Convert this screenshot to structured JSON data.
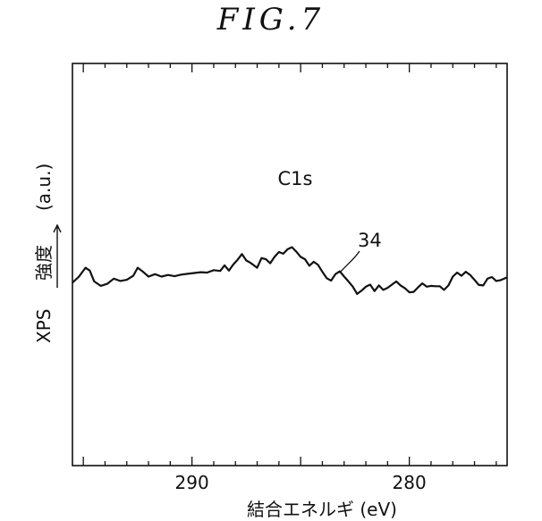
{
  "figure": {
    "title": "FIG.7"
  },
  "chart_data": {
    "type": "line",
    "title": "FIG.7",
    "xlabel": "結合エネルギ (eV)",
    "ylabel": "XPS 強度 (a.u.)",
    "ylabel_parts": {
      "main": "XPS",
      "jp": "強度",
      "unit": "(a.u.)"
    },
    "x_reversed": true,
    "xlim": [
      295.5,
      275.5
    ],
    "ylim": [
      0,
      1
    ],
    "x_ticks": [
      290,
      280
    ],
    "x_tick_labels": [
      "290",
      "280"
    ],
    "y_ticks_shown": false,
    "grid": false,
    "annotations": {
      "peak_label": "C1s",
      "curve_label": "34"
    },
    "series": [
      {
        "values_xy": [
          [
            295.5,
            0.455
          ],
          [
            295.2,
            0.47
          ],
          [
            294.9,
            0.492
          ],
          [
            294.7,
            0.485
          ],
          [
            294.5,
            0.458
          ],
          [
            294.2,
            0.447
          ],
          [
            293.9,
            0.452
          ],
          [
            293.6,
            0.465
          ],
          [
            293.3,
            0.459
          ],
          [
            293.0,
            0.462
          ],
          [
            292.7,
            0.472
          ],
          [
            292.5,
            0.492
          ],
          [
            292.3,
            0.484
          ],
          [
            292.0,
            0.47
          ],
          [
            291.7,
            0.476
          ],
          [
            291.4,
            0.47
          ],
          [
            291.1,
            0.474
          ],
          [
            290.8,
            0.471
          ],
          [
            290.5,
            0.475
          ],
          [
            290.2,
            0.477
          ],
          [
            289.9,
            0.479
          ],
          [
            289.6,
            0.481
          ],
          [
            289.3,
            0.48
          ],
          [
            289.0,
            0.486
          ],
          [
            288.7,
            0.484
          ],
          [
            288.5,
            0.498
          ],
          [
            288.3,
            0.485
          ],
          [
            288.1,
            0.5
          ],
          [
            287.9,
            0.512
          ],
          [
            287.7,
            0.526
          ],
          [
            287.5,
            0.51
          ],
          [
            287.3,
            0.504
          ],
          [
            287.0,
            0.492
          ],
          [
            286.8,
            0.516
          ],
          [
            286.6,
            0.513
          ],
          [
            286.4,
            0.503
          ],
          [
            286.2,
            0.519
          ],
          [
            286.0,
            0.531
          ],
          [
            285.8,
            0.527
          ],
          [
            285.6,
            0.538
          ],
          [
            285.4,
            0.543
          ],
          [
            285.2,
            0.532
          ],
          [
            285.0,
            0.519
          ],
          [
            284.8,
            0.513
          ],
          [
            284.6,
            0.497
          ],
          [
            284.4,
            0.507
          ],
          [
            284.2,
            0.499
          ],
          [
            284.0,
            0.482
          ],
          [
            283.8,
            0.466
          ],
          [
            283.6,
            0.46
          ],
          [
            283.4,
            0.476
          ],
          [
            283.2,
            0.483
          ],
          [
            283.0,
            0.47
          ],
          [
            282.8,
            0.458
          ],
          [
            282.6,
            0.445
          ],
          [
            282.4,
            0.427
          ],
          [
            282.2,
            0.435
          ],
          [
            282.0,
            0.445
          ],
          [
            281.8,
            0.45
          ],
          [
            281.6,
            0.434
          ],
          [
            281.4,
            0.448
          ],
          [
            281.2,
            0.437
          ],
          [
            281.0,
            0.442
          ],
          [
            280.8,
            0.45
          ],
          [
            280.6,
            0.458
          ],
          [
            280.4,
            0.448
          ],
          [
            280.2,
            0.441
          ],
          [
            280.0,
            0.431
          ],
          [
            279.8,
            0.432
          ],
          [
            279.6,
            0.443
          ],
          [
            279.4,
            0.453
          ],
          [
            279.2,
            0.445
          ],
          [
            279.0,
            0.447
          ],
          [
            278.8,
            0.446
          ],
          [
            278.6,
            0.446
          ],
          [
            278.4,
            0.437
          ],
          [
            278.2,
            0.448
          ],
          [
            278.0,
            0.47
          ],
          [
            277.8,
            0.48
          ],
          [
            277.6,
            0.472
          ],
          [
            277.4,
            0.482
          ],
          [
            277.2,
            0.474
          ],
          [
            277.0,
            0.462
          ],
          [
            276.8,
            0.449
          ],
          [
            276.6,
            0.448
          ],
          [
            276.4,
            0.465
          ],
          [
            276.2,
            0.469
          ],
          [
            276.0,
            0.459
          ],
          [
            275.8,
            0.461
          ],
          [
            275.5,
            0.468
          ]
        ]
      }
    ]
  }
}
